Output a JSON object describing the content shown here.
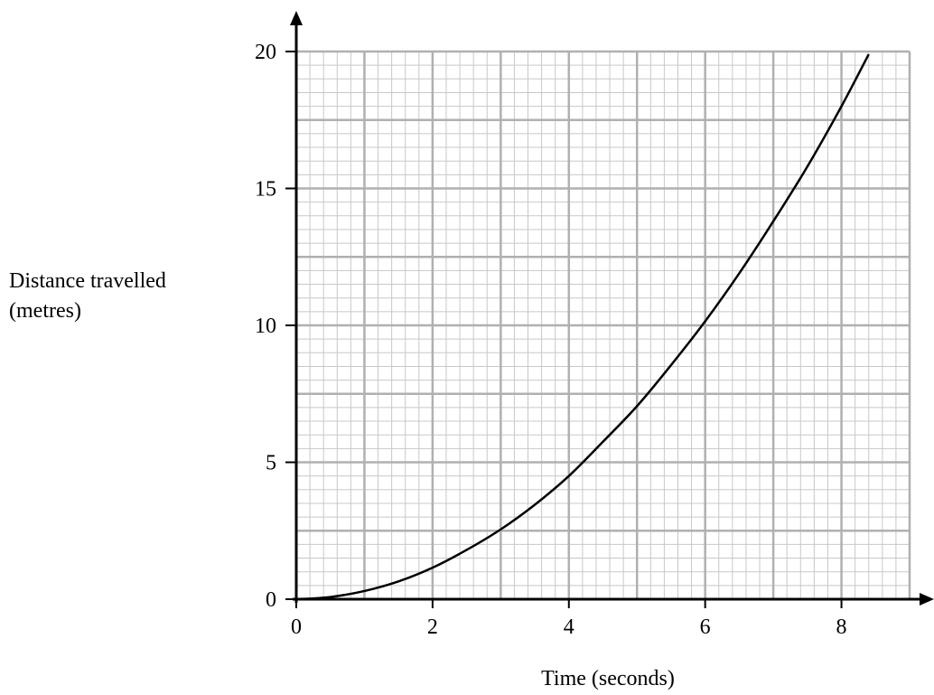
{
  "chart_data": {
    "type": "line",
    "xlabel": "Time (seconds)",
    "ylabel_lines": [
      "Distance travelled",
      "(metres)"
    ],
    "xlim": [
      0,
      9
    ],
    "ylim": [
      0,
      20
    ],
    "x_ticks": [
      0,
      2,
      4,
      6,
      8
    ],
    "y_ticks": [
      0,
      5,
      10,
      15,
      20
    ],
    "x_tick_labels": [
      "0",
      "2",
      "4",
      "6",
      "8"
    ],
    "y_tick_labels": [
      "0",
      "5",
      "10",
      "15",
      "20"
    ],
    "grid": "on",
    "grid_minor_step": [
      0.2,
      0.5
    ],
    "grid_major_step": [
      1,
      2.5
    ],
    "series": [
      {
        "x": [
          0,
          0.5,
          1,
          1.5,
          2,
          2.5,
          3,
          3.5,
          4,
          4.5,
          5,
          5.5,
          6,
          6.5,
          7,
          7.5,
          8,
          8.4
        ],
        "y": [
          0,
          0.08,
          0.3,
          0.65,
          1.15,
          1.8,
          2.55,
          3.45,
          4.5,
          5.75,
          7.05,
          8.55,
          10.15,
          11.9,
          13.8,
          15.8,
          18.0,
          19.9
        ],
        "color": "#000000"
      }
    ]
  },
  "colors": {
    "grid_minor": "#c8c8c8",
    "grid_major": "#b0b0b0",
    "axis": "#000000"
  }
}
